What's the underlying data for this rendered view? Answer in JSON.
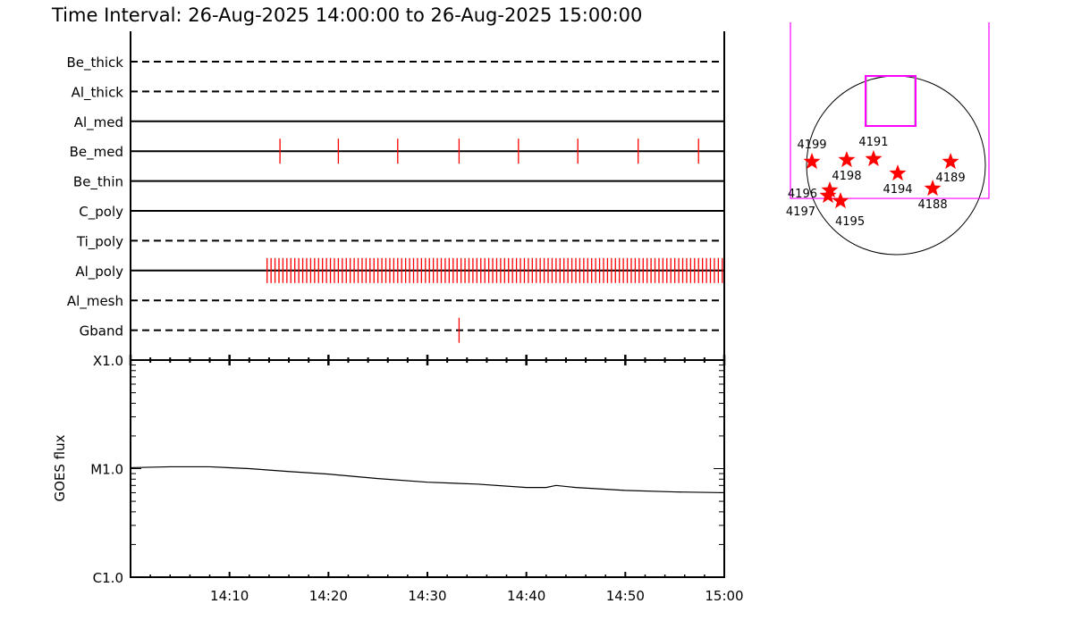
{
  "title": "Time Interval: 26-Aug-2025 14:00:00 to 26-Aug-2025 15:00:00",
  "chart_data": [
    {
      "type": "timeline",
      "x_range": [
        "14:00",
        "15:00"
      ],
      "rows": [
        {
          "name": "Be_thick",
          "style": "dashed",
          "events": []
        },
        {
          "name": "Al_thick",
          "style": "dashed",
          "events": []
        },
        {
          "name": "Al_med",
          "style": "solid",
          "events": []
        },
        {
          "name": "Be_med",
          "style": "solid",
          "events": [
            "14:15:06",
            "14:21:00",
            "14:27:00",
            "14:33:12",
            "14:39:12",
            "14:45:12",
            "14:51:18",
            "14:57:24"
          ]
        },
        {
          "name": "Be_thin",
          "style": "solid",
          "events": []
        },
        {
          "name": "C_poly",
          "style": "solid",
          "events": []
        },
        {
          "name": "Ti_poly",
          "style": "dashed",
          "events": []
        },
        {
          "name": "Al_poly",
          "style": "solid",
          "event_series": {
            "start": "14:13:48",
            "end": "15:00:00",
            "cadence_s": 24
          }
        },
        {
          "name": "Al_mesh",
          "style": "dashed",
          "events": []
        },
        {
          "name": "Gband",
          "style": "dashed",
          "events": [
            "14:33:12"
          ]
        }
      ],
      "event_color": "#ff0000"
    },
    {
      "type": "line",
      "ylabel": "GOES flux",
      "y_scale": "log",
      "ylim": [
        1e-06,
        0.0001
      ],
      "y_ticks": [
        {
          "value": 0.0001,
          "label": "X1.0"
        },
        {
          "value": 1e-05,
          "label": "M1.0"
        },
        {
          "value": 1e-06,
          "label": "C1.0"
        }
      ],
      "x_range": [
        "14:00",
        "15:00"
      ],
      "x_ticks": [
        "14:10",
        "14:20",
        "14:30",
        "14:40",
        "14:50",
        "15:00"
      ],
      "series": [
        {
          "x": [
            "14:00",
            "14:04",
            "14:08",
            "14:12",
            "14:16",
            "14:20",
            "14:25",
            "14:30",
            "14:35",
            "14:40",
            "14:42",
            "14:43",
            "14:45",
            "14:50",
            "14:55",
            "15:00"
          ],
          "y": [
            1.02e-05,
            1.04e-05,
            1.04e-05,
            1e-05,
            9.4e-06,
            8.9e-06,
            8.1e-06,
            7.5e-06,
            7.2e-06,
            6.7e-06,
            6.7e-06,
            7e-06,
            6.7e-06,
            6.3e-06,
            6.1e-06,
            6e-06
          ]
        }
      ]
    },
    {
      "type": "scatter",
      "units": "arcsec",
      "solar_radius": 950,
      "marker": "star",
      "marker_color": "#ff0000",
      "fov_color": "#ff00ff",
      "fov_large": {
        "x": [
          -1121,
          988
        ],
        "y": [
          -352,
          1520
        ]
      },
      "fov_small": {
        "x": [
          -323,
          209
        ],
        "y": [
          418,
          950
        ]
      },
      "points": [
        {
          "label": "4199",
          "x": -893,
          "y": 38
        },
        {
          "label": "4198",
          "x": -523,
          "y": 57
        },
        {
          "label": "4191",
          "x": -238,
          "y": 67
        },
        {
          "label": "4194",
          "x": 19,
          "y": -86
        },
        {
          "label": "4189",
          "x": 580,
          "y": 38
        },
        {
          "label": "4188",
          "x": 390,
          "y": -247
        },
        {
          "label": "4196",
          "x": -703,
          "y": -266
        },
        {
          "label": "4197",
          "x": -722,
          "y": -323
        },
        {
          "label": "4195",
          "x": -589,
          "y": -380
        }
      ]
    }
  ]
}
